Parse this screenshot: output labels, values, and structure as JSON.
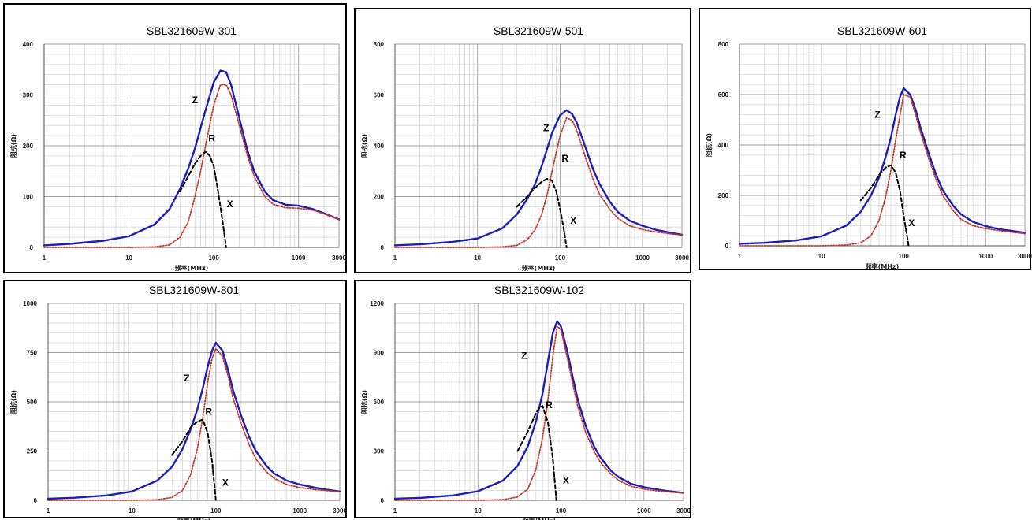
{
  "page": {
    "background": "#ffffff",
    "border_color": "#000000"
  },
  "chart_data": [
    {
      "type": "line",
      "title": "SBL321609W-301",
      "xlabel": "频率(MHz)",
      "ylabel": "阻抗(Ω)",
      "xscale": "log",
      "xlim": [
        1,
        3000
      ],
      "ylim": [
        0,
        400
      ],
      "x_ticks": [
        "1",
        "10",
        "100",
        "1000",
        "3000"
      ],
      "y_ticks": [
        "0",
        "100",
        "200",
        "300",
        "400"
      ],
      "grid": true,
      "series": [
        {
          "name": "Z",
          "color": "#1f1fb4",
          "style": "solid",
          "x": [
            1,
            2,
            5,
            10,
            20,
            30,
            40,
            50,
            60,
            70,
            80,
            100,
            120,
            140,
            160,
            200,
            250,
            300,
            400,
            500,
            700,
            1000,
            1500,
            2000,
            3000
          ],
          "y": [
            4,
            7,
            13,
            22,
            45,
            75,
            115,
            155,
            195,
            235,
            270,
            325,
            348,
            345,
            320,
            255,
            190,
            150,
            110,
            93,
            84,
            82,
            75,
            67,
            55
          ]
        },
        {
          "name": "R",
          "color": "#c0392b",
          "style": "dotted",
          "x": [
            1,
            10,
            20,
            30,
            40,
            50,
            60,
            70,
            80,
            100,
            120,
            140,
            160,
            200,
            250,
            300,
            400,
            500,
            700,
            1000,
            1500,
            2000,
            3000
          ],
          "y": [
            0,
            0,
            1,
            5,
            20,
            50,
            100,
            150,
            200,
            280,
            320,
            320,
            300,
            240,
            180,
            140,
            100,
            85,
            78,
            77,
            73,
            66,
            55
          ]
        },
        {
          "name": "X",
          "color": "#000000",
          "style": "dash",
          "x": [
            40,
            50,
            60,
            70,
            80,
            90,
            100,
            110,
            120,
            130,
            140
          ],
          "y": [
            110,
            140,
            165,
            180,
            188,
            180,
            160,
            120,
            80,
            40,
            0
          ]
        }
      ],
      "labels": [
        {
          "text": "Z",
          "x": 60,
          "y": 290
        },
        {
          "text": "R",
          "x": 95,
          "y": 215
        },
        {
          "text": "X",
          "x": 155,
          "y": 85
        }
      ]
    },
    {
      "type": "line",
      "title": "SBL321609W-501",
      "xlabel": "频率(MHz)",
      "ylabel": "阻抗(Ω)",
      "xscale": "log",
      "xlim": [
        1,
        3000
      ],
      "ylim": [
        0,
        800
      ],
      "x_ticks": [
        "1",
        "10",
        "100",
        "1000",
        "3000"
      ],
      "y_ticks": [
        "0",
        "200",
        "400",
        "600",
        "800"
      ],
      "grid": true,
      "series": [
        {
          "name": "Z",
          "color": "#1f1fb4",
          "style": "solid",
          "x": [
            1,
            2,
            5,
            10,
            20,
            30,
            40,
            50,
            60,
            70,
            80,
            100,
            120,
            140,
            160,
            200,
            250,
            300,
            400,
            500,
            700,
            1000,
            1500,
            2000,
            3000
          ],
          "y": [
            8,
            12,
            22,
            35,
            75,
            130,
            190,
            250,
            320,
            390,
            450,
            520,
            540,
            525,
            490,
            400,
            310,
            250,
            180,
            140,
            105,
            85,
            68,
            60,
            50
          ]
        },
        {
          "name": "R",
          "color": "#c0392b",
          "style": "dotted",
          "x": [
            1,
            10,
            20,
            30,
            40,
            50,
            60,
            70,
            80,
            100,
            120,
            140,
            160,
            200,
            250,
            300,
            400,
            500,
            700,
            1000,
            1500,
            2000,
            3000
          ],
          "y": [
            0,
            0,
            2,
            8,
            30,
            70,
            130,
            210,
            300,
            440,
            510,
            500,
            460,
            360,
            270,
            210,
            150,
            115,
            85,
            70,
            60,
            55,
            48
          ]
        },
        {
          "name": "X",
          "color": "#000000",
          "style": "dash",
          "x": [
            30,
            40,
            50,
            60,
            70,
            80,
            90,
            100,
            110,
            120
          ],
          "y": [
            160,
            200,
            235,
            258,
            270,
            262,
            220,
            150,
            80,
            0
          ]
        }
      ],
      "labels": [
        {
          "text": "Z",
          "x": 68,
          "y": 470
        },
        {
          "text": "R",
          "x": 115,
          "y": 350
        },
        {
          "text": "X",
          "x": 145,
          "y": 105
        }
      ]
    },
    {
      "type": "line",
      "title": "SBL321609W-601",
      "xlabel": "频率(MHz)",
      "ylabel": "阻抗(Ω)",
      "xscale": "log",
      "xlim": [
        1,
        3000
      ],
      "ylim": [
        0,
        800
      ],
      "x_ticks": [
        "1",
        "10",
        "100",
        "1000",
        "3000"
      ],
      "y_ticks": [
        "0",
        "200",
        "400",
        "600",
        "800"
      ],
      "grid": true,
      "series": [
        {
          "name": "Z",
          "color": "#1f1fb4",
          "style": "solid",
          "x": [
            1,
            2,
            5,
            10,
            20,
            30,
            40,
            50,
            60,
            70,
            80,
            90,
            100,
            120,
            140,
            160,
            200,
            250,
            300,
            400,
            500,
            700,
            1000,
            1500,
            2000,
            3000
          ],
          "y": [
            8,
            12,
            22,
            38,
            80,
            135,
            200,
            270,
            350,
            430,
            520,
            590,
            625,
            600,
            540,
            470,
            370,
            280,
            220,
            160,
            125,
            95,
            78,
            65,
            60,
            52
          ]
        },
        {
          "name": "R",
          "color": "#c0392b",
          "style": "dotted",
          "x": [
            1,
            10,
            20,
            30,
            40,
            50,
            60,
            70,
            80,
            100,
            120,
            140,
            160,
            200,
            250,
            300,
            400,
            500,
            700,
            1000,
            1500,
            2000,
            3000
          ],
          "y": [
            0,
            0,
            3,
            12,
            40,
            100,
            190,
            300,
            420,
            600,
            590,
            520,
            450,
            350,
            260,
            200,
            140,
            105,
            80,
            68,
            60,
            55,
            48
          ]
        },
        {
          "name": "X",
          "color": "#000000",
          "style": "dash",
          "x": [
            30,
            40,
            50,
            60,
            70,
            80,
            90,
            100,
            110,
            115
          ],
          "y": [
            180,
            230,
            280,
            310,
            320,
            290,
            220,
            120,
            40,
            0
          ]
        }
      ],
      "labels": [
        {
          "text": "Z",
          "x": 48,
          "y": 520
        },
        {
          "text": "R",
          "x": 98,
          "y": 360
        },
        {
          "text": "X",
          "x": 125,
          "y": 90
        }
      ]
    },
    {
      "type": "line",
      "title": "SBL321609W-801",
      "xlabel": "频率(MHz)",
      "ylabel": "阻抗(Ω)",
      "xscale": "log",
      "xlim": [
        1,
        3000
      ],
      "ylim": [
        0,
        1000
      ],
      "x_ticks": [
        "1",
        "10",
        "100",
        "1000",
        "3000"
      ],
      "y_ticks": [
        "0",
        "250",
        "500",
        "750",
        "1000"
      ],
      "grid": true,
      "series": [
        {
          "name": "Z",
          "color": "#1f1fb4",
          "style": "solid",
          "x": [
            1,
            2,
            5,
            10,
            20,
            30,
            40,
            50,
            60,
            70,
            80,
            90,
            100,
            120,
            140,
            160,
            200,
            250,
            300,
            400,
            500,
            700,
            1000,
            1500,
            2000,
            3000
          ],
          "y": [
            8,
            13,
            25,
            45,
            100,
            170,
            260,
            360,
            460,
            570,
            680,
            760,
            800,
            760,
            660,
            560,
            430,
            320,
            250,
            175,
            135,
            100,
            80,
            65,
            55,
            45
          ]
        },
        {
          "name": "R",
          "color": "#c0392b",
          "style": "dotted",
          "x": [
            1,
            10,
            20,
            30,
            40,
            50,
            60,
            70,
            80,
            90,
            100,
            120,
            140,
            160,
            200,
            250,
            300,
            400,
            500,
            700,
            1000,
            1500,
            2000,
            3000
          ],
          "y": [
            0,
            0,
            3,
            15,
            50,
            130,
            260,
            420,
            600,
            720,
            770,
            730,
            630,
            520,
            390,
            280,
            210,
            145,
            110,
            80,
            65,
            55,
            50,
            43
          ]
        },
        {
          "name": "X",
          "color": "#000000",
          "style": "dash",
          "x": [
            30,
            40,
            50,
            60,
            70,
            80,
            90,
            100
          ],
          "y": [
            230,
            300,
            370,
            400,
            410,
            340,
            200,
            0
          ]
        }
      ],
      "labels": [
        {
          "text": "Z",
          "x": 45,
          "y": 620
        },
        {
          "text": "R",
          "x": 82,
          "y": 450
        },
        {
          "text": "X",
          "x": 130,
          "y": 90
        }
      ]
    },
    {
      "type": "line",
      "title": "SBL321609W-102",
      "xlabel": "频率(MHz)",
      "ylabel": "阻抗(Ω)",
      "xscale": "log",
      "xlim": [
        1,
        3000
      ],
      "ylim": [
        0,
        1200
      ],
      "x_ticks": [
        "1",
        "10",
        "100",
        "1000",
        "3000"
      ],
      "y_ticks": [
        "0",
        "300",
        "600",
        "900",
        "1200"
      ],
      "grid": true,
      "series": [
        {
          "name": "Z",
          "color": "#1f1fb4",
          "style": "solid",
          "x": [
            1,
            2,
            5,
            10,
            20,
            30,
            40,
            50,
            60,
            70,
            80,
            90,
            100,
            120,
            140,
            160,
            200,
            250,
            300,
            400,
            500,
            700,
            1000,
            1500,
            2000,
            3000
          ],
          "y": [
            10,
            15,
            30,
            55,
            120,
            210,
            330,
            480,
            650,
            850,
            1020,
            1090,
            1060,
            900,
            740,
            610,
            450,
            330,
            260,
            180,
            140,
            100,
            80,
            65,
            55,
            45
          ]
        },
        {
          "name": "R",
          "color": "#c0392b",
          "style": "dotted",
          "x": [
            1,
            10,
            20,
            30,
            40,
            50,
            60,
            70,
            80,
            90,
            100,
            120,
            140,
            160,
            200,
            250,
            300,
            400,
            500,
            700,
            1000,
            1500,
            2000,
            3000
          ],
          "y": [
            0,
            0,
            4,
            20,
            70,
            190,
            380,
            620,
            880,
            1060,
            1040,
            860,
            700,
            570,
            410,
            300,
            230,
            160,
            120,
            85,
            68,
            57,
            51,
            45
          ]
        },
        {
          "name": "X",
          "color": "#000000",
          "style": "dash",
          "x": [
            30,
            40,
            50,
            55,
            60,
            70,
            80,
            88
          ],
          "y": [
            300,
            420,
            530,
            565,
            575,
            470,
            250,
            0
          ]
        }
      ],
      "labels": [
        {
          "text": "Z",
          "x": 36,
          "y": 880
        },
        {
          "text": "R",
          "x": 72,
          "y": 580
        },
        {
          "text": "X",
          "x": 115,
          "y": 120
        }
      ]
    }
  ]
}
